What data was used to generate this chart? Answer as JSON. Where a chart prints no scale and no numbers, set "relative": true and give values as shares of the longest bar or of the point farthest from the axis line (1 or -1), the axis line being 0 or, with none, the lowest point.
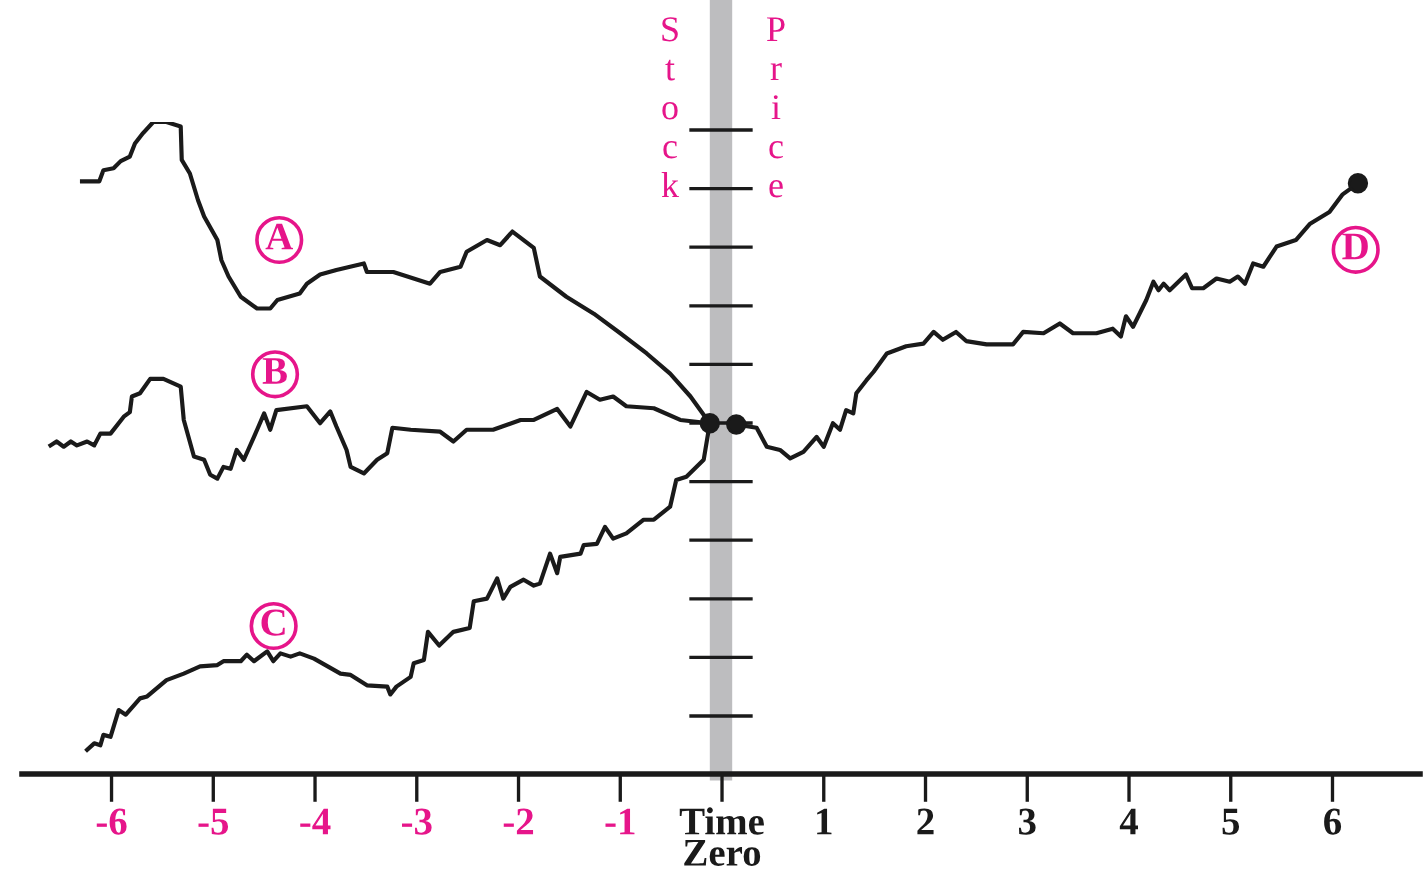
{
  "chart_data": {
    "type": "line",
    "relative": true,
    "ylabel": "Stock Price",
    "grid": false,
    "legend": false,
    "marker": "none",
    "line_style": "solid",
    "xlim": [
      -6.88,
      6.86
    ],
    "xticks": [
      -6,
      -5,
      -4,
      -3,
      -2,
      -1,
      {
        "value": 0,
        "label": "Time\nZero"
      },
      1,
      2,
      3,
      4,
      5,
      6
    ],
    "bands": [
      {
        "axis": "x",
        "from": -0.12,
        "to": 0.1,
        "color": "#bdbdbf"
      }
    ],
    "series": [
      {
        "name": "A",
        "color": "#1a1a1a",
        "x": [
          -6.29,
          -6.12,
          -6.08,
          -5.98,
          -5.91,
          -5.82,
          -5.77,
          -5.69,
          -5.59,
          -5.46,
          -5.32,
          -5.31,
          -5.23,
          -5.15,
          -5.09,
          -4.96,
          -4.92,
          -4.85,
          -4.73,
          -4.57,
          -4.44,
          -4.37,
          -4.15,
          -4.08,
          -3.95,
          -3.79,
          -3.52,
          -3.49,
          -3.23,
          -2.87,
          -2.77,
          -2.57,
          -2.51,
          -2.31,
          -2.18,
          -2.06,
          -1.85,
          -1.79,
          -1.53,
          -1.26,
          -1.0,
          -0.74,
          -0.51,
          -0.31,
          -0.12
        ],
        "values": [
          0.909,
          0.909,
          0.926,
          0.929,
          0.94,
          0.947,
          0.967,
          0.983,
          1.0,
          1.0,
          0.993,
          0.942,
          0.921,
          0.88,
          0.855,
          0.819,
          0.788,
          0.763,
          0.732,
          0.714,
          0.714,
          0.727,
          0.737,
          0.752,
          0.766,
          0.773,
          0.783,
          0.77,
          0.77,
          0.752,
          0.77,
          0.778,
          0.801,
          0.819,
          0.811,
          0.832,
          0.807,
          0.763,
          0.732,
          0.706,
          0.676,
          0.645,
          0.614,
          0.579,
          0.538
        ]
      },
      {
        "name": "B",
        "color": "#1a1a1a",
        "x": [
          -6.6,
          -6.54,
          -6.47,
          -6.4,
          -6.34,
          -6.24,
          -6.17,
          -6.11,
          -6.01,
          -5.88,
          -5.82,
          -5.8,
          -5.72,
          -5.62,
          -5.49,
          -5.32,
          -5.29,
          -5.19,
          -5.09,
          -5.03,
          -4.96,
          -4.9,
          -4.83,
          -4.77,
          -4.7,
          -4.6,
          -4.5,
          -4.44,
          -4.38,
          -4.08,
          -3.95,
          -3.85,
          -3.79,
          -3.69,
          -3.65,
          -3.52,
          -3.39,
          -3.29,
          -3.24,
          -3.06,
          -2.77,
          -2.64,
          -2.51,
          -2.25,
          -1.98,
          -1.85,
          -1.62,
          -1.49,
          -1.33,
          -1.2,
          -1.07,
          -0.94,
          -0.67,
          -0.41,
          -0.12
        ],
        "values": [
          0.504,
          0.51,
          0.502,
          0.51,
          0.504,
          0.51,
          0.504,
          0.522,
          0.522,
          0.548,
          0.555,
          0.579,
          0.584,
          0.606,
          0.606,
          0.594,
          0.543,
          0.487,
          0.482,
          0.459,
          0.453,
          0.471,
          0.468,
          0.497,
          0.482,
          0.517,
          0.553,
          0.528,
          0.558,
          0.564,
          0.538,
          0.556,
          0.533,
          0.497,
          0.471,
          0.461,
          0.482,
          0.492,
          0.531,
          0.528,
          0.525,
          0.51,
          0.528,
          0.528,
          0.543,
          0.543,
          0.56,
          0.533,
          0.586,
          0.574,
          0.579,
          0.564,
          0.561,
          0.543,
          0.538
        ]
      },
      {
        "name": "C",
        "color": "#1a1a1a",
        "x": [
          -6.24,
          -6.17,
          -6.11,
          -6.08,
          -6.01,
          -5.93,
          -5.86,
          -5.72,
          -5.65,
          -5.46,
          -5.29,
          -5.13,
          -4.96,
          -4.9,
          -4.73,
          -4.67,
          -4.6,
          -4.47,
          -4.41,
          -4.34,
          -4.24,
          -4.15,
          -4.01,
          -3.75,
          -3.65,
          -3.49,
          -3.29,
          -3.26,
          -3.2,
          -3.06,
          -3.03,
          -2.93,
          -2.89,
          -2.78,
          -2.64,
          -2.48,
          -2.44,
          -2.31,
          -2.21,
          -2.15,
          -2.08,
          -1.95,
          -1.85,
          -1.79,
          -1.69,
          -1.62,
          -1.59,
          -1.39,
          -1.36,
          -1.23,
          -1.15,
          -1.07,
          -0.94,
          -0.77,
          -0.67,
          -0.51,
          -0.45,
          -0.35,
          -0.18,
          -0.12
        ],
        "values": [
          0.037,
          0.047,
          0.044,
          0.06,
          0.057,
          0.098,
          0.091,
          0.116,
          0.119,
          0.144,
          0.154,
          0.165,
          0.167,
          0.173,
          0.173,
          0.183,
          0.173,
          0.188,
          0.173,
          0.185,
          0.18,
          0.185,
          0.177,
          0.154,
          0.152,
          0.136,
          0.134,
          0.122,
          0.134,
          0.149,
          0.17,
          0.175,
          0.218,
          0.197,
          0.218,
          0.224,
          0.265,
          0.269,
          0.3,
          0.269,
          0.287,
          0.298,
          0.289,
          0.292,
          0.338,
          0.308,
          0.333,
          0.338,
          0.351,
          0.353,
          0.379,
          0.361,
          0.369,
          0.39,
          0.39,
          0.41,
          0.451,
          0.456,
          0.482,
          0.538
        ]
      },
      {
        "name": "D",
        "color": "#1a1a1a",
        "x": [
          0.14,
          0.34,
          0.44,
          0.57,
          0.67,
          0.8,
          0.93,
          1.0,
          1.09,
          1.16,
          1.22,
          1.29,
          1.32,
          1.42,
          1.49,
          1.62,
          1.81,
          1.98,
          2.08,
          2.17,
          2.3,
          2.4,
          2.6,
          2.86,
          2.96,
          3.16,
          3.32,
          3.45,
          3.68,
          3.84,
          3.92,
          3.97,
          4.04,
          4.17,
          4.24,
          4.29,
          4.34,
          4.4,
          4.56,
          4.62,
          4.73,
          4.86,
          4.99,
          5.07,
          5.14,
          5.22,
          5.32,
          5.45,
          5.64,
          5.78,
          5.97,
          6.1,
          6.25
        ],
        "values": [
          0.536,
          0.531,
          0.502,
          0.497,
          0.484,
          0.494,
          0.517,
          0.502,
          0.538,
          0.528,
          0.558,
          0.553,
          0.584,
          0.604,
          0.617,
          0.645,
          0.656,
          0.66,
          0.678,
          0.666,
          0.678,
          0.664,
          0.659,
          0.659,
          0.678,
          0.676,
          0.691,
          0.676,
          0.676,
          0.683,
          0.671,
          0.702,
          0.686,
          0.727,
          0.755,
          0.742,
          0.752,
          0.742,
          0.766,
          0.745,
          0.745,
          0.76,
          0.755,
          0.763,
          0.752,
          0.783,
          0.778,
          0.809,
          0.819,
          0.844,
          0.862,
          0.889,
          0.906
        ]
      },
      {
        "type": "scatter",
        "color": "#1a1a1a",
        "marker": "circle",
        "x": [
          -0.12,
          0.14,
          6.25
        ],
        "values": [
          0.538,
          0.536,
          0.906
        ]
      }
    ]
  }
}
